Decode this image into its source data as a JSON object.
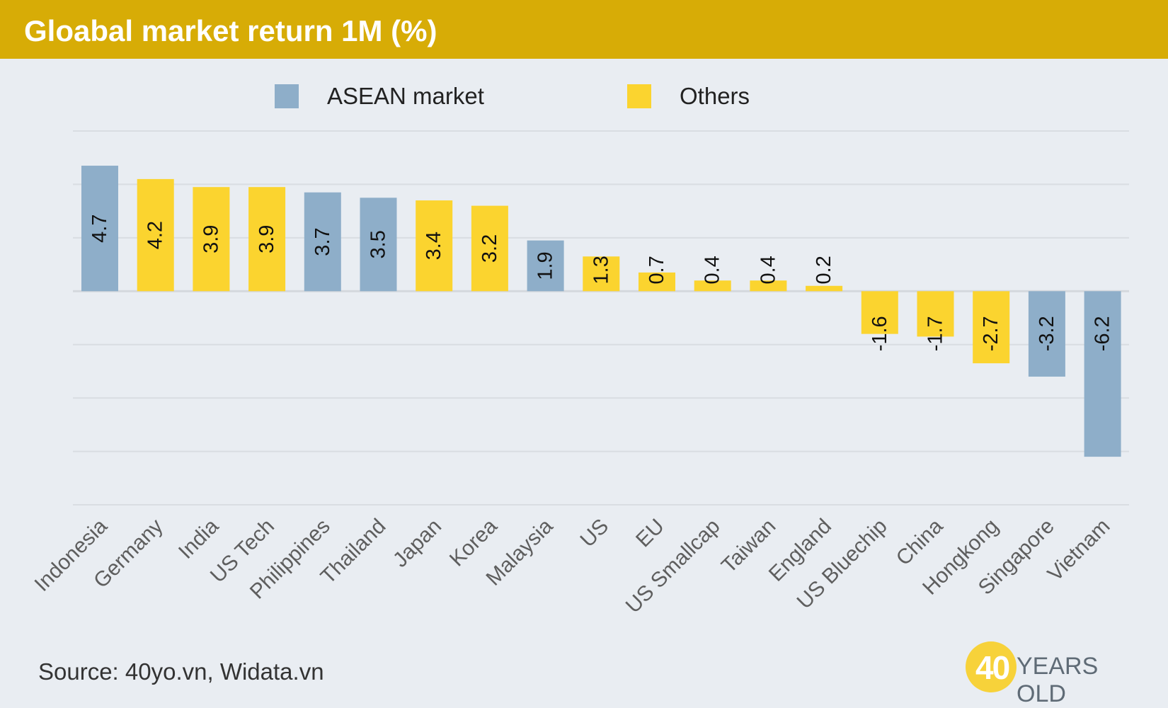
{
  "title": "Gloabal market return 1M (%)",
  "legend": {
    "asean_label": "ASEAN market",
    "others_label": "Others"
  },
  "source": "Source: 40yo.vn, Widata.vn",
  "brand": {
    "number": "40",
    "text": "YEARS OLD"
  },
  "colors": {
    "asean": "#8eaec9",
    "others": "#fbd42f",
    "title_bar": "#d7ac06",
    "background": "#e9edf2"
  },
  "chart_data": {
    "type": "bar",
    "title": "Gloabal market return 1M (%)",
    "xlabel": "",
    "ylabel": "",
    "ylim": [
      -8,
      6
    ],
    "grid": true,
    "legend_position": "top-center",
    "series": [
      {
        "name": "ASEAN market",
        "color": "#8eaec9"
      },
      {
        "name": "Others",
        "color": "#fbd42f"
      }
    ],
    "categories": [
      "Indonesia",
      "Germany",
      "India",
      "US Tech",
      "Philippines",
      "Thailand",
      "Japan",
      "Korea",
      "Malaysia",
      "US",
      "EU",
      "US Smallcap",
      "Taiwan",
      "England",
      "US Bluechip",
      "China",
      "Hongkong",
      "Singapore",
      "Vietnam"
    ],
    "values": [
      4.7,
      4.2,
      3.9,
      3.9,
      3.7,
      3.5,
      3.4,
      3.2,
      1.9,
      1.3,
      0.7,
      0.4,
      0.4,
      0.2,
      -1.6,
      -1.7,
      -2.7,
      -3.2,
      -6.2
    ],
    "groups": [
      "ASEAN market",
      "Others",
      "Others",
      "Others",
      "ASEAN market",
      "ASEAN market",
      "Others",
      "Others",
      "ASEAN market",
      "Others",
      "Others",
      "Others",
      "Others",
      "Others",
      "Others",
      "Others",
      "Others",
      "ASEAN market",
      "ASEAN market"
    ],
    "data_labels": [
      "4.7",
      "4.2",
      "3.9",
      "3.9",
      "3.7",
      "3.5",
      "3.4",
      "3.2",
      "1.9",
      "1.3",
      "0.7",
      "0.4",
      "0.4",
      "0.2",
      "-1.6",
      "-1.7",
      "-2.7",
      "-3.2",
      "-6.2"
    ]
  }
}
